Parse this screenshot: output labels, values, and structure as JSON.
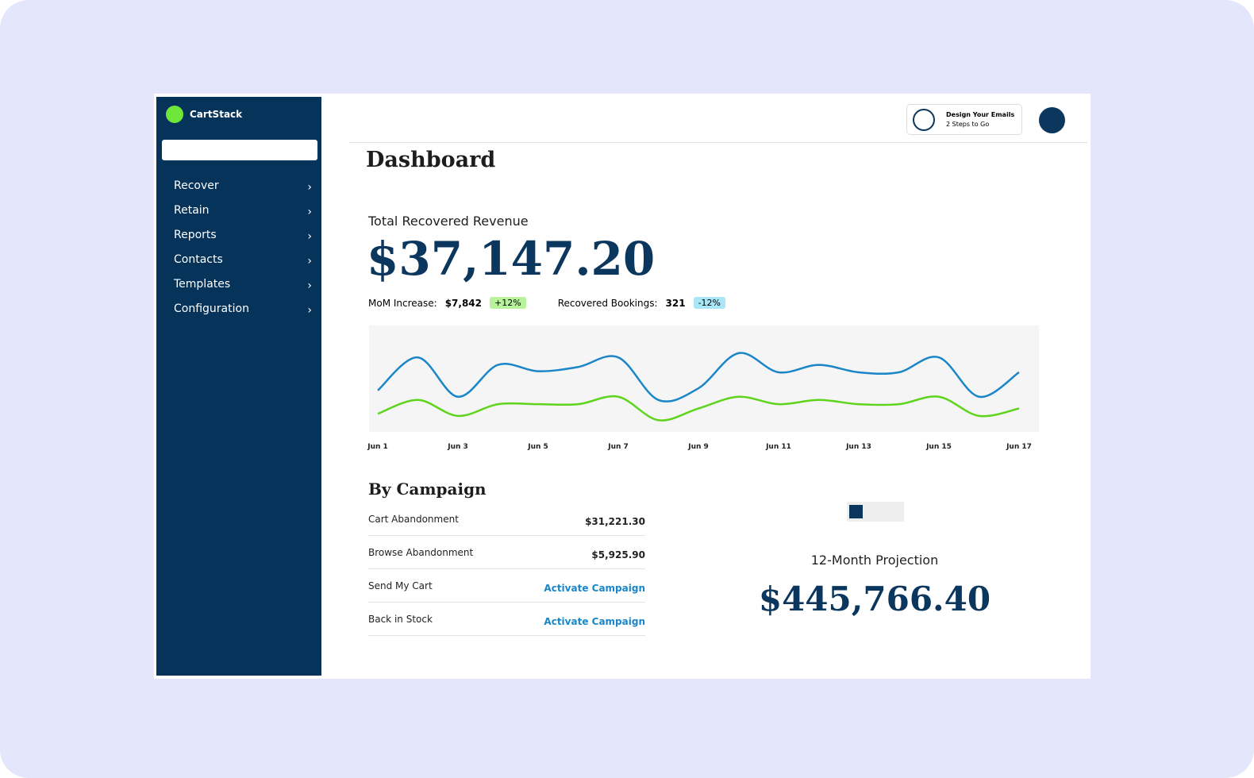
{
  "brand": "CartStack",
  "nav": [
    "Recover",
    "Retain",
    "Reports",
    "Contacts",
    "Templates",
    "Configuration"
  ],
  "onboarding": {
    "title": "Design Your Emails",
    "subtitle": "2 Steps to Go"
  },
  "page_title": "Dashboard",
  "revenue": {
    "label": "Total Recovered Revenue",
    "amount": "$37,147.20",
    "stats": [
      {
        "label": "MoM Increase:",
        "value": "$7,842",
        "change": "+12%"
      },
      {
        "label": "Recovered Bookings:",
        "value": "321",
        "change": "-12%"
      }
    ]
  },
  "chart_data": {
    "type": "line",
    "categories": [
      "Jun 1",
      null,
      "Jun 3",
      null,
      "Jun 5",
      null,
      "Jun 7",
      null,
      "Jun 9",
      null,
      "Jun 11",
      null,
      "Jun 13",
      null,
      "Jun 15",
      null,
      "Jun 17"
    ],
    "series": [
      {
        "color": "#1a86c8",
        "values": [
          39,
          70,
          33,
          63,
          57,
          61,
          70,
          30,
          41,
          74,
          56,
          63,
          56,
          56,
          70,
          33,
          56
        ]
      },
      {
        "color": "#5fd41c",
        "values": [
          17,
          30,
          15,
          26,
          26,
          26,
          33,
          11,
          22,
          33,
          26,
          30,
          26,
          26,
          33,
          15,
          22
        ]
      }
    ],
    "ylim": [
      0,
      100
    ]
  },
  "campaigns": {
    "title": "By Campaign",
    "rows": [
      [
        "Cart Abandonment",
        "$31,221.30"
      ],
      [
        "Browse Abandonment",
        "$5,925.90"
      ],
      [
        "Send My Cart",
        "Activate Campaign"
      ],
      [
        "Back in Stock",
        "Activate Campaign"
      ]
    ]
  },
  "projection": {
    "label": "12-Month Projection",
    "amount": "$445,766.40"
  }
}
